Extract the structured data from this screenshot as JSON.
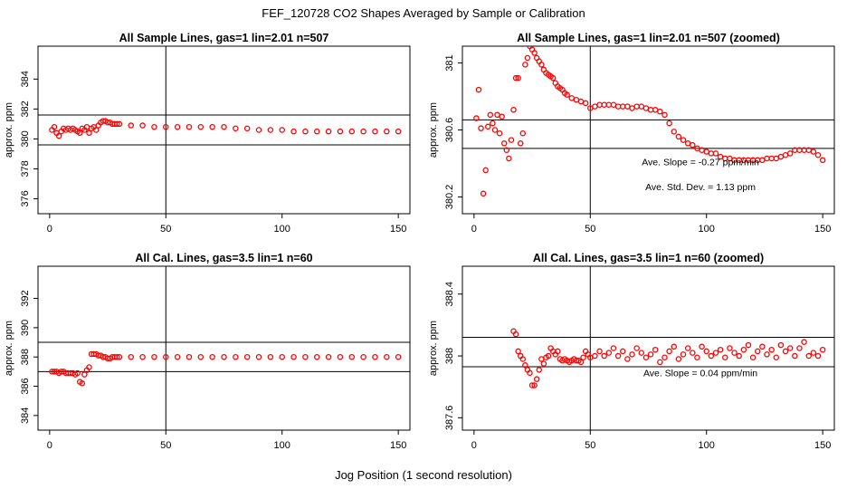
{
  "title": "FEF_120728  CO2 Shapes Averaged by Sample or Calibration",
  "xlabel": "Jog Position (1 second resolution)",
  "chart_data": [
    {
      "type": "scatter",
      "title": "All Sample Lines, gas=1 lin=2.01 n=507",
      "ylabel": "approx. ppm",
      "xlim": [
        -5,
        155
      ],
      "ylim": [
        375,
        386.2
      ],
      "xticks": [
        0,
        50,
        100,
        150
      ],
      "yticks": [
        376,
        378,
        380,
        382,
        384
      ],
      "vline": 50,
      "hlines": [
        379.6,
        381.6
      ],
      "marker_color": "#ff0000",
      "annotations": [],
      "series": [
        {
          "x": [
            1,
            2,
            3,
            4,
            5,
            6,
            7,
            8,
            9,
            10,
            11,
            12,
            13,
            14,
            15,
            16,
            17,
            18,
            19,
            20,
            21,
            22,
            23,
            24,
            25,
            26,
            27,
            28,
            29,
            30,
            35,
            40,
            45,
            50,
            55,
            60,
            65,
            70,
            75,
            80,
            85,
            90,
            95,
            100,
            105,
            110,
            115,
            120,
            125,
            130,
            135,
            140,
            145,
            150
          ],
          "y": [
            380.6,
            380.8,
            380.4,
            380.2,
            380.5,
            380.7,
            380.6,
            380.7,
            380.6,
            380.7,
            380.6,
            380.5,
            380.4,
            380.7,
            380.6,
            380.8,
            380.4,
            380.7,
            380.8,
            380.6,
            380.9,
            381.1,
            381.2,
            381.2,
            381.1,
            381.1,
            381.0,
            381.0,
            381.0,
            381.0,
            380.9,
            380.9,
            380.8,
            380.8,
            380.8,
            380.8,
            380.8,
            380.8,
            380.8,
            380.7,
            380.7,
            380.6,
            380.6,
            380.6,
            380.5,
            380.5,
            380.5,
            380.5,
            380.5,
            380.5,
            380.5,
            380.5,
            380.5,
            380.5
          ]
        }
      ]
    },
    {
      "type": "scatter",
      "title": "All Sample Lines, gas=1 lin=2.01 n=507 (zoomed)",
      "ylabel": "approx. ppm",
      "xlim": [
        -5,
        155
      ],
      "ylim": [
        380.1,
        381.1
      ],
      "xticks": [
        0,
        50,
        100,
        150
      ],
      "yticks": [
        380.2,
        380.6,
        381.0
      ],
      "vline": 50,
      "hlines": [
        380.66,
        380.49
      ],
      "marker_color": "#ff0000",
      "annotations": [
        "Ave. Slope =  -0.27  ppm/min",
        "Ave. Std. Dev. =  1.13  ppm"
      ],
      "series": [
        {
          "x": [
            1,
            2,
            3,
            4,
            5,
            6,
            7,
            8,
            9,
            10,
            11,
            12,
            13,
            14,
            15,
            16,
            17,
            18,
            19,
            20,
            21,
            22,
            23,
            24,
            25,
            26,
            27,
            28,
            29,
            30,
            31,
            32,
            33,
            34,
            35,
            36,
            37,
            38,
            39,
            40,
            42,
            44,
            46,
            48,
            50,
            52,
            54,
            56,
            58,
            60,
            62,
            64,
            66,
            68,
            70,
            72,
            74,
            76,
            78,
            80,
            82,
            84,
            86,
            88,
            90,
            92,
            94,
            96,
            98,
            100,
            102,
            104,
            106,
            108,
            110,
            112,
            114,
            116,
            118,
            120,
            122,
            124,
            126,
            128,
            130,
            132,
            134,
            136,
            138,
            140,
            142,
            144,
            146,
            148,
            150
          ],
          "y": [
            380.67,
            380.84,
            380.61,
            380.22,
            380.36,
            380.62,
            380.69,
            380.64,
            380.6,
            380.69,
            380.58,
            380.68,
            380.52,
            380.48,
            380.43,
            380.54,
            380.72,
            380.91,
            380.91,
            380.52,
            380.58,
            380.99,
            381.03,
            381.1,
            381.08,
            381.06,
            381.03,
            381.01,
            380.99,
            380.96,
            380.94,
            380.93,
            380.92,
            380.91,
            380.88,
            380.86,
            380.85,
            380.84,
            380.82,
            380.81,
            380.79,
            380.78,
            380.77,
            380.76,
            380.73,
            380.74,
            380.75,
            380.75,
            380.75,
            380.75,
            380.74,
            380.74,
            380.74,
            380.73,
            380.74,
            380.74,
            380.73,
            380.72,
            380.72,
            380.71,
            380.69,
            380.64,
            380.59,
            380.56,
            380.54,
            380.52,
            380.51,
            380.49,
            380.48,
            380.47,
            380.46,
            380.46,
            380.44,
            380.43,
            380.43,
            380.42,
            380.42,
            380.42,
            380.42,
            380.42,
            380.42,
            380.42,
            380.43,
            380.43,
            380.43,
            380.44,
            380.45,
            380.46,
            380.48,
            380.48,
            380.48,
            380.48,
            380.47,
            380.45,
            380.42
          ]
        }
      ]
    },
    {
      "type": "scatter",
      "title": "All Cal. Lines, gas=3.5 lin=1 n=60",
      "ylabel": "approx. ppm",
      "xlim": [
        -5,
        155
      ],
      "ylim": [
        383,
        394.2
      ],
      "xticks": [
        0,
        50,
        100,
        150
      ],
      "yticks": [
        384,
        386,
        388,
        390,
        392
      ],
      "vline": 50,
      "hlines": [
        389.0,
        387.0
      ],
      "marker_color": "#ff0000",
      "annotations": [],
      "series": [
        {
          "x": [
            1,
            2,
            3,
            4,
            5,
            6,
            7,
            8,
            9,
            10,
            11,
            12,
            13,
            14,
            15,
            16,
            17,
            18,
            19,
            20,
            21,
            22,
            23,
            24,
            25,
            26,
            27,
            28,
            29,
            30,
            35,
            40,
            45,
            50,
            55,
            60,
            65,
            70,
            75,
            80,
            85,
            90,
            95,
            100,
            105,
            110,
            115,
            120,
            125,
            130,
            135,
            140,
            145,
            150
          ],
          "y": [
            387.0,
            387.0,
            387.0,
            386.9,
            387.0,
            387.0,
            386.9,
            386.9,
            386.9,
            386.9,
            386.8,
            386.9,
            386.3,
            386.2,
            386.8,
            387.1,
            387.3,
            388.2,
            388.2,
            388.2,
            388.1,
            388.1,
            388.0,
            388.0,
            387.9,
            387.9,
            388.0,
            388.0,
            388.0,
            388.0,
            388.0,
            388.0,
            388.0,
            388.0,
            388.0,
            388.0,
            388.0,
            388.0,
            388.0,
            388.0,
            388.0,
            388.0,
            388.0,
            388.0,
            388.0,
            388.0,
            388.0,
            388.0,
            388.0,
            388.0,
            388.0,
            388.0,
            388.0,
            388.0
          ]
        }
      ]
    },
    {
      "type": "scatter",
      "title": "All Cal. Lines, gas=3.5 lin=1 n=60 (zoomed)",
      "ylabel": "approx. ppm",
      "xlim": [
        -5,
        155
      ],
      "ylim": [
        387.52,
        388.58
      ],
      "xticks": [
        0,
        50,
        100,
        150
      ],
      "yticks": [
        387.6,
        388.0,
        388.4
      ],
      "vline": 50,
      "hlines": [
        388.12,
        387.93
      ],
      "marker_color": "#ff0000",
      "annotations": [
        "Ave. Slope =  0.04  ppm/min"
      ],
      "series": [
        {
          "x": [
            17,
            18,
            19,
            20,
            21,
            22,
            23,
            24,
            25,
            26,
            27,
            28,
            29,
            30,
            31,
            32,
            33,
            34,
            35,
            36,
            37,
            38,
            39,
            40,
            41,
            42,
            43,
            44,
            45,
            46,
            47,
            48,
            49,
            50,
            52,
            54,
            56,
            58,
            60,
            62,
            64,
            66,
            68,
            70,
            72,
            74,
            76,
            78,
            80,
            82,
            84,
            86,
            88,
            90,
            92,
            94,
            96,
            98,
            100,
            102,
            104,
            106,
            108,
            110,
            112,
            114,
            116,
            118,
            120,
            122,
            124,
            126,
            128,
            130,
            132,
            134,
            136,
            138,
            140,
            142,
            144,
            146,
            148,
            150
          ],
          "y": [
            388.16,
            388.14,
            388.03,
            388.0,
            387.98,
            387.94,
            387.91,
            387.89,
            387.81,
            387.81,
            387.85,
            387.91,
            387.98,
            387.95,
            387.99,
            388.0,
            388.05,
            388.03,
            388.01,
            388.03,
            387.98,
            387.97,
            387.98,
            387.97,
            387.96,
            387.97,
            387.98,
            387.97,
            387.97,
            387.96,
            387.99,
            388.03,
            388.01,
            387.99,
            388.0,
            388.03,
            388.0,
            388.02,
            388.05,
            388.0,
            388.03,
            387.98,
            388.01,
            388.05,
            388.02,
            387.99,
            388.01,
            388.04,
            387.96,
            387.99,
            388.03,
            388.06,
            387.98,
            388.01,
            388.05,
            388.02,
            387.99,
            388.06,
            388.03,
            388.0,
            388.02,
            388.04,
            387.99,
            388.05,
            388.02,
            388.0,
            388.04,
            388.07,
            387.99,
            388.03,
            388.06,
            388.01,
            388.04,
            387.99,
            388.07,
            388.03,
            388.05,
            388.0,
            388.05,
            388.09,
            388.0,
            388.02,
            388.0,
            388.04
          ]
        }
      ]
    }
  ]
}
